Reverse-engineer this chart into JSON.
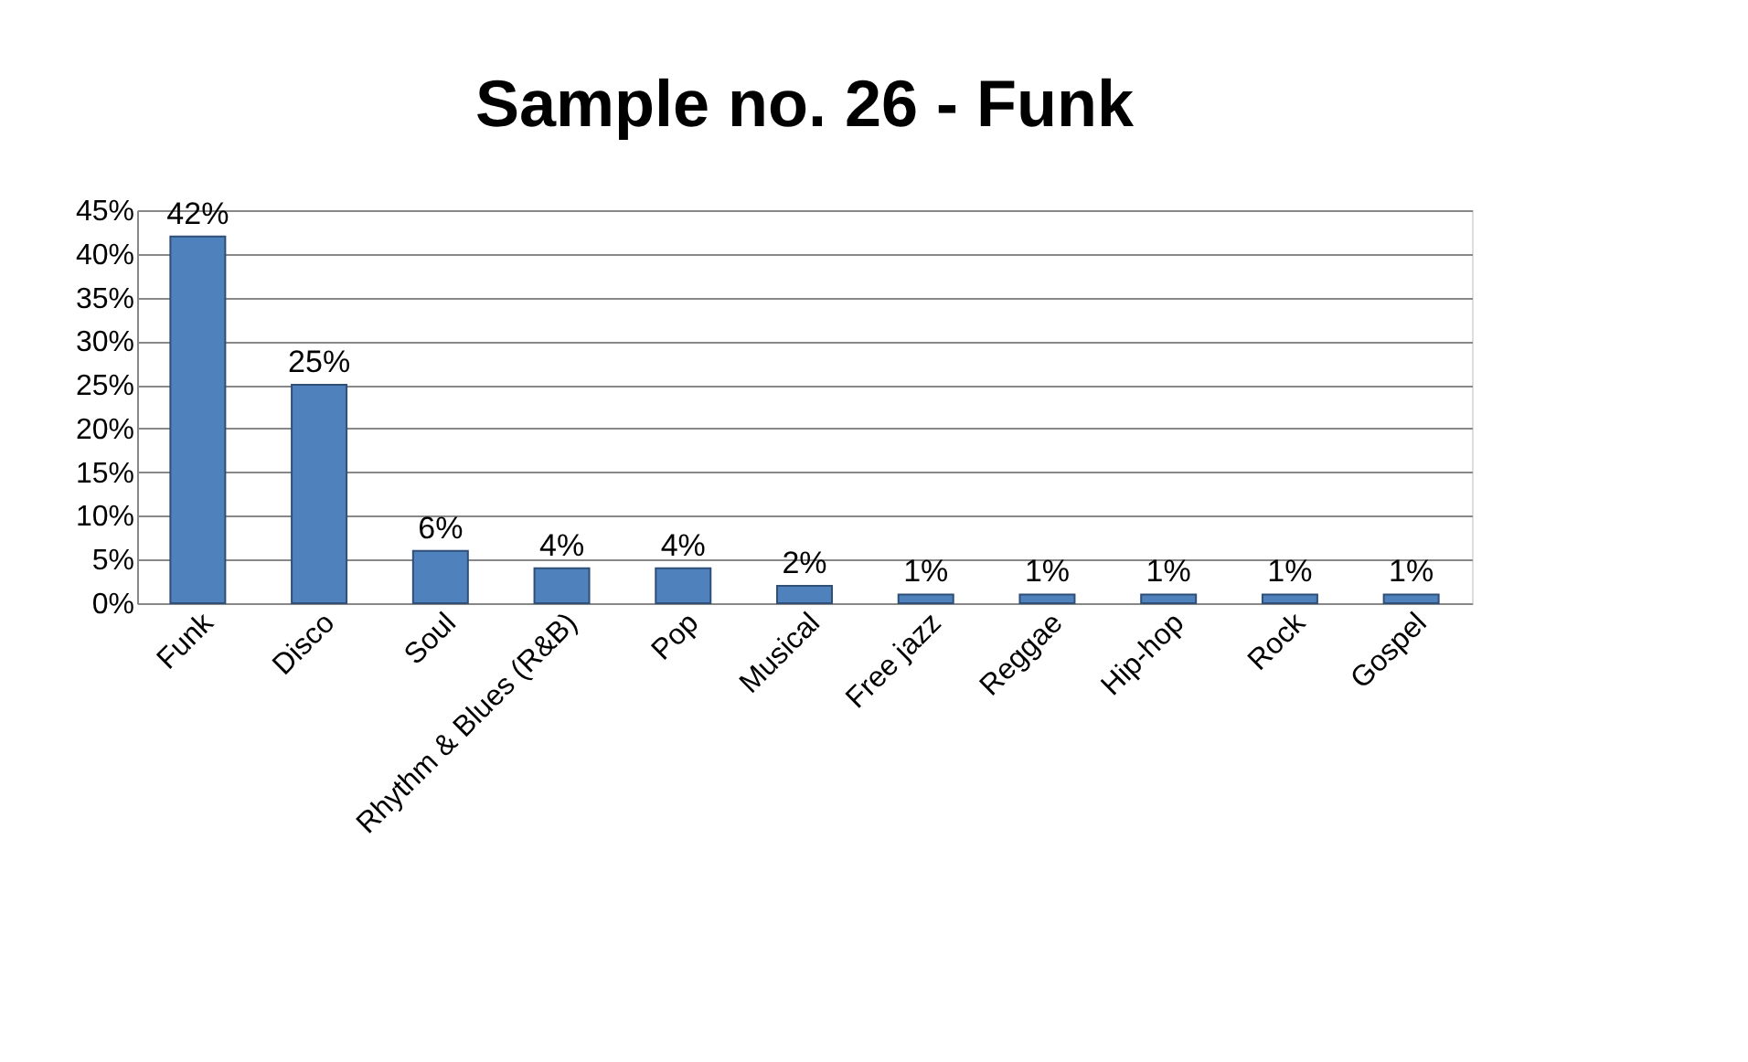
{
  "chart_data": {
    "type": "bar",
    "title": "Sample no. 26 - Funk",
    "categories": [
      "Funk",
      "Disco",
      "Soul",
      "Rhythm & Blues (R&B)",
      "Pop",
      "Musical",
      "Free jazz",
      "Reggae",
      "Hip-hop",
      "Rock",
      "Gospel"
    ],
    "values": [
      42,
      25,
      6,
      4,
      4,
      2,
      1,
      1,
      1,
      1,
      1
    ],
    "value_labels": [
      "42%",
      "25%",
      "6%",
      "4%",
      "4%",
      "2%",
      "1%",
      "1%",
      "1%",
      "1%",
      "1%"
    ],
    "color": "#4f81bd",
    "ylim": [
      0,
      45
    ],
    "yticks": [
      {
        "value": 0,
        "label": "0%"
      },
      {
        "value": 5,
        "label": "5%"
      },
      {
        "value": 10,
        "label": "10%"
      },
      {
        "value": 15,
        "label": "15%"
      },
      {
        "value": 20,
        "label": "20%"
      },
      {
        "value": 25,
        "label": "25%"
      },
      {
        "value": 30,
        "label": "30%"
      },
      {
        "value": 35,
        "label": "35%"
      },
      {
        "value": 40,
        "label": "40%"
      },
      {
        "value": 45,
        "label": "45%"
      }
    ],
    "grid": "y"
  }
}
